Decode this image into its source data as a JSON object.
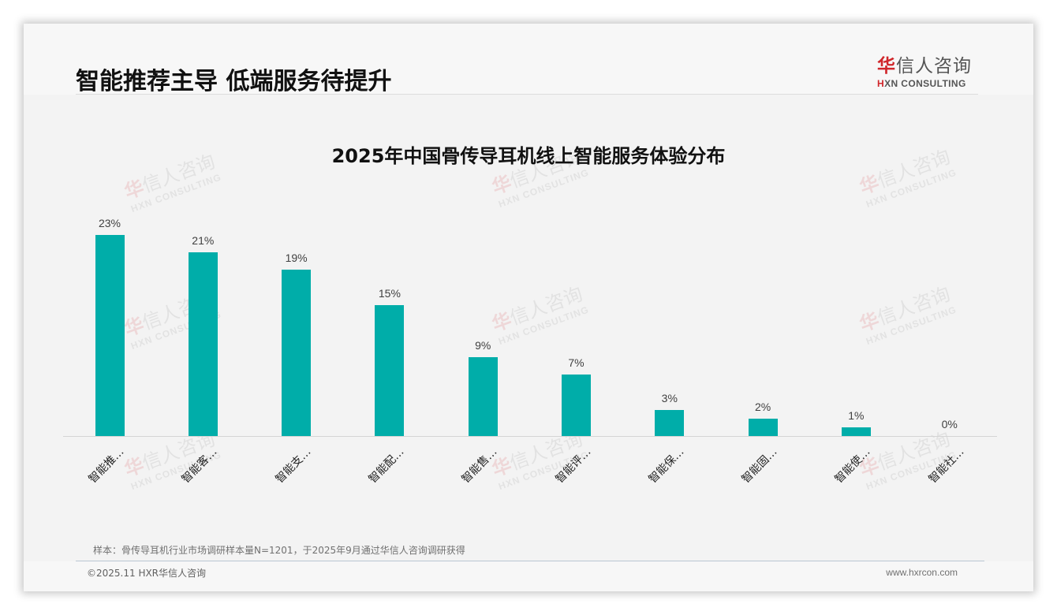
{
  "header": {
    "title": "智能推荐主导 低端服务待提升",
    "logo": {
      "cn_accent": "华",
      "cn_rest": "信人咨询",
      "en_accent": "H",
      "en_rest": "XN CONSULTING"
    }
  },
  "watermark": {
    "cn_accent": "华",
    "cn_rest": "信人咨询",
    "en": "HXN CONSULTING"
  },
  "chart_data": {
    "type": "bar",
    "title": "2025年中国骨传导耳机线上智能服务体验分布",
    "xlabel": "",
    "ylabel": "",
    "categories": [
      "智能推…",
      "智能客…",
      "智能支…",
      "智能配…",
      "智能售…",
      "智能评…",
      "智能保…",
      "智能固…",
      "智能使…",
      "智能社…"
    ],
    "values": [
      23,
      21,
      19,
      15,
      9,
      7,
      3,
      2,
      1,
      0
    ],
    "value_labels": [
      "23%",
      "21%",
      "19%",
      "15%",
      "9%",
      "7%",
      "3%",
      "2%",
      "1%",
      "0%"
    ],
    "unit": "%",
    "ylim": [
      0,
      25
    ],
    "grid": false,
    "legend": "none",
    "bar_color": "#00ADA9"
  },
  "footer": {
    "note": "样本：骨传导耳机行业市场调研样本量N=1201，于2025年9月通过华信人咨询调研获得",
    "copyright": "©2025.11 HXR华信人咨询",
    "website": "www.hxrcon.com"
  }
}
